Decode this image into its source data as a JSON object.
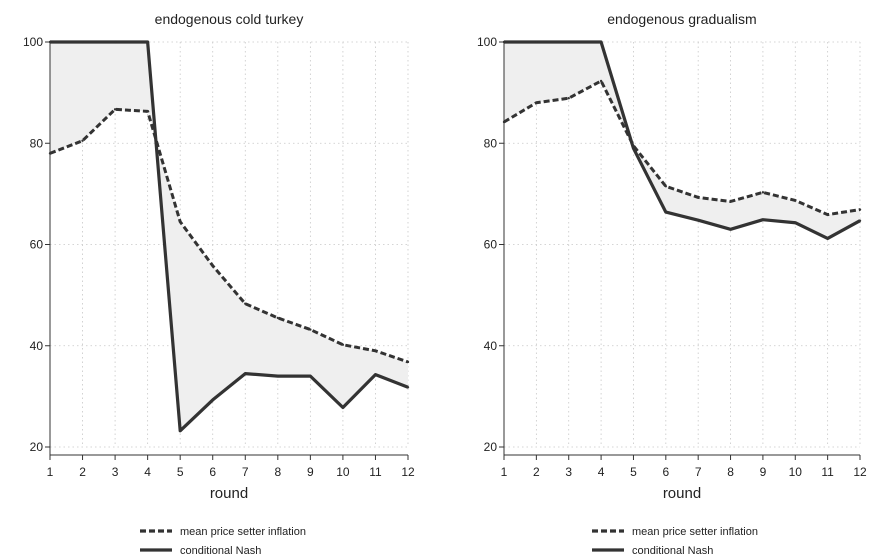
{
  "chart_data": [
    {
      "type": "line",
      "title": "endogenous cold turkey",
      "xlabel": "round",
      "ylabel": "",
      "x": [
        1,
        2,
        3,
        4,
        5,
        6,
        7,
        8,
        9,
        10,
        11,
        12
      ],
      "xticks": [
        "1",
        "2",
        "3",
        "4",
        "5",
        "6",
        "7",
        "8",
        "9",
        "10",
        "11",
        "12"
      ],
      "ylim": [
        20,
        100
      ],
      "yticks": [
        20,
        40,
        60,
        80,
        100
      ],
      "grid": true,
      "shaded_between_series": true,
      "legend_position": "bottom",
      "series": [
        {
          "name": "mean price setter inflation",
          "style": "dashed",
          "values": [
            78,
            80.5,
            86.7,
            86.3,
            64.5,
            55.8,
            48.3,
            45.5,
            43.2,
            40.2,
            39.0,
            36.8
          ]
        },
        {
          "name": "conditional Nash",
          "style": "solid",
          "values": [
            100,
            100,
            100,
            100,
            23.2,
            29.3,
            34.5,
            34.0,
            34.0,
            27.8,
            34.3,
            31.8
          ]
        }
      ]
    },
    {
      "type": "line",
      "title": "endogenous gradualism",
      "xlabel": "round",
      "ylabel": "",
      "x": [
        1,
        2,
        3,
        4,
        5,
        6,
        7,
        8,
        9,
        10,
        11,
        12
      ],
      "xticks": [
        "1",
        "2",
        "3",
        "4",
        "5",
        "6",
        "7",
        "8",
        "9",
        "10",
        "11",
        "12"
      ],
      "ylim": [
        20,
        100
      ],
      "yticks": [
        20,
        40,
        60,
        80,
        100
      ],
      "grid": true,
      "shaded_between_series": true,
      "legend_position": "bottom",
      "series": [
        {
          "name": "mean price setter inflation",
          "style": "dashed",
          "values": [
            84.2,
            88.0,
            88.9,
            92.3,
            79.5,
            71.5,
            69.3,
            68.5,
            70.3,
            68.7,
            65.9,
            66.9
          ]
        },
        {
          "name": "conditional Nash",
          "style": "solid",
          "values": [
            100,
            100,
            100,
            100,
            79.0,
            66.4,
            64.8,
            63.0,
            64.9,
            64.3,
            61.2,
            64.7
          ]
        }
      ]
    }
  ],
  "colors": {
    "line": "#333333",
    "shade": "#efefef",
    "grid": "#c8c8c8"
  }
}
